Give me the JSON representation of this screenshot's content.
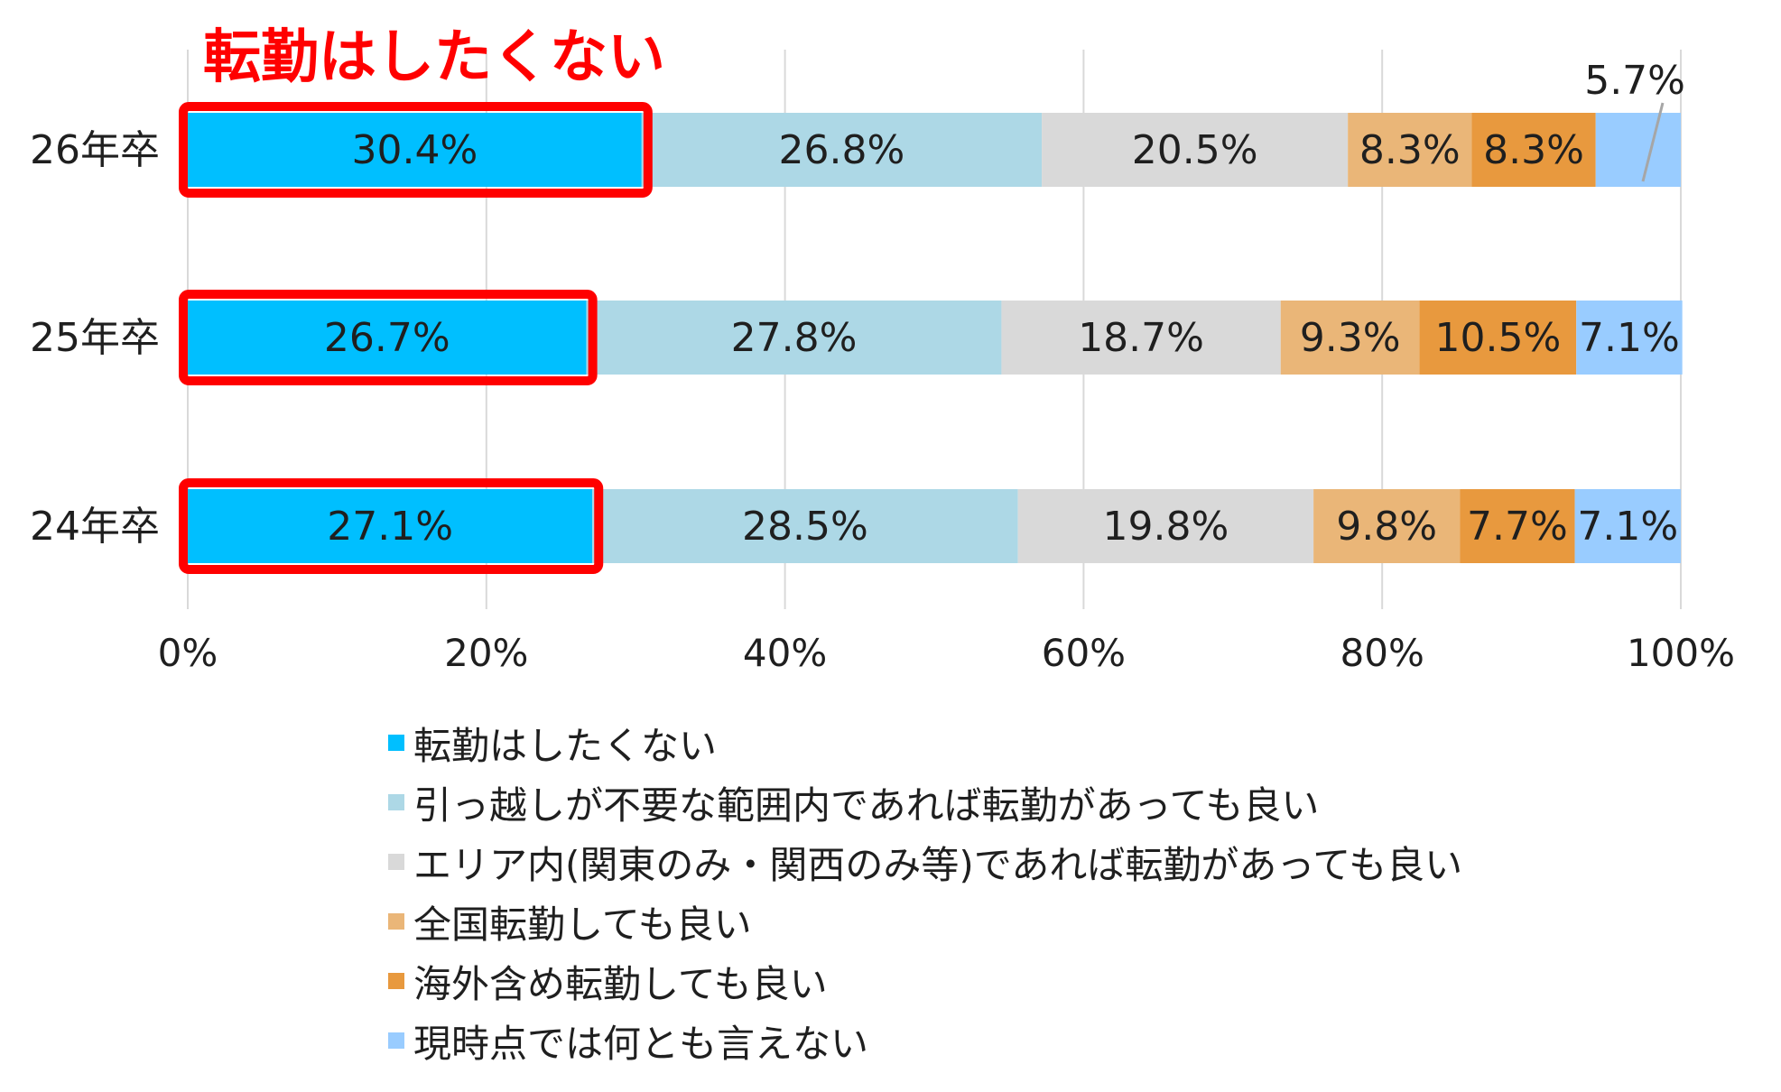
{
  "chart_data": {
    "type": "bar",
    "orientation": "horizontal",
    "stacked": true,
    "categories": [
      "26年卒",
      "25年卒",
      "24年卒"
    ],
    "series": [
      {
        "name": "転勤はしたくない",
        "color": "#00bfff",
        "values": [
          30.4,
          26.7,
          27.1
        ],
        "labels": [
          "30.4%",
          "26.7%",
          "27.1%"
        ]
      },
      {
        "name": "引っ越しが不要な範囲内であれば転勤があっても良い",
        "color": "#add8e6",
        "values": [
          26.8,
          27.8,
          28.5
        ],
        "labels": [
          "26.8%",
          "27.8%",
          "28.5%"
        ]
      },
      {
        "name": "エリア内(関東のみ・関西のみ等)であれば転勤があっても良い",
        "color": "#d9d9d9",
        "values": [
          20.5,
          18.7,
          19.8
        ],
        "labels": [
          "20.5%",
          "18.7%",
          "19.8%"
        ]
      },
      {
        "name": "全国転勤しても良い",
        "color": "#eab678",
        "values": [
          8.3,
          9.3,
          9.8
        ],
        "labels": [
          "8.3%",
          "9.3%",
          "9.8%"
        ]
      },
      {
        "name": "海外含め転勤しても良い",
        "color": "#e8993e",
        "values": [
          8.3,
          10.5,
          7.7
        ],
        "labels": [
          "8.3%",
          "10.5%",
          "7.7%"
        ]
      },
      {
        "name": "現時点では何とも言えない",
        "color": "#99ccff",
        "values": [
          5.7,
          7.1,
          7.1
        ],
        "labels": [
          "5.7%",
          "7.1%",
          "7.1%"
        ]
      }
    ],
    "xlim": [
      0,
      100
    ],
    "x_ticks": [
      "0%",
      "20%",
      "40%",
      "60%",
      "80%",
      "100%"
    ],
    "grid": true,
    "legend_position": "bottom",
    "annotation": {
      "text": "転勤はしたくない",
      "color": "#ff0000",
      "highlights_series": 0
    }
  }
}
